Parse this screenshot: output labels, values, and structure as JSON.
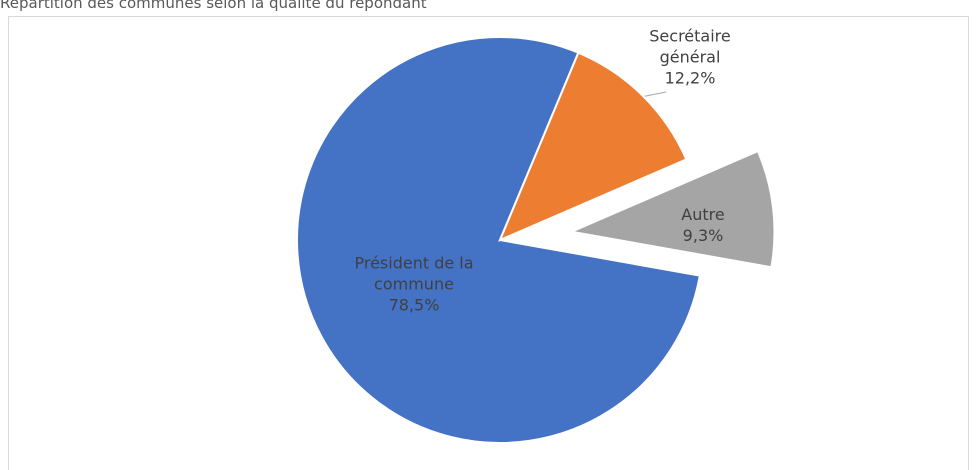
{
  "chart_data": {
    "type": "pie",
    "title": "Répartition des communes selon la qualité du répondant",
    "categories": [
      "Président de la commune",
      "Secrétaire général",
      "Autre"
    ],
    "values": [
      78.5,
      12.2,
      9.3
    ],
    "value_labels": [
      "78,5%",
      "12,2%",
      "9,3%"
    ],
    "colors": [
      "#4472c4",
      "#ed7d31",
      "#a5a5a5"
    ],
    "exploded_slice": "Autre"
  }
}
